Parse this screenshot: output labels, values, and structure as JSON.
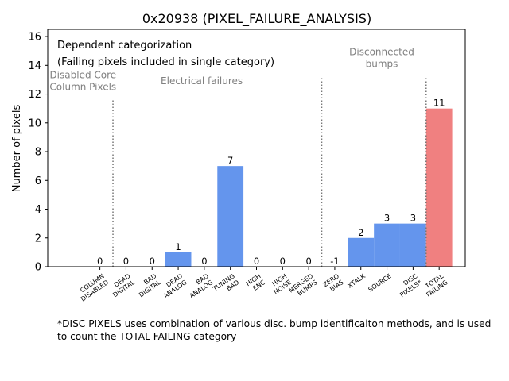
{
  "chart_data": {
    "type": "bar",
    "title": "0x20938 (PIXEL_FAILURE_ANALYSIS)",
    "xlabel": "",
    "ylabel": "Number of pixels",
    "ylim": [
      0,
      16.5
    ],
    "yticks": [
      0,
      2,
      4,
      6,
      8,
      10,
      12,
      14,
      16
    ],
    "grid": false,
    "categories": [
      "COLUMN DISABLED",
      "DEAD DIGITAL",
      "BAD DIGITAL",
      "DEAD ANALOG",
      "BAD ANALOG",
      "TUNING BAD",
      "HIGH ENC",
      "HIGH NOISE",
      "MERGED BUMPS",
      "ZERO BIAS",
      "XTALK",
      "SOURCE",
      "DISC PIXELS*",
      "TOTAL FAILING"
    ],
    "values": [
      0,
      0,
      0,
      1,
      0,
      7,
      0,
      0,
      0,
      -1,
      2,
      3,
      3,
      11
    ],
    "data_labels": [
      "0",
      "0",
      "0",
      "1",
      "0",
      "7",
      "0",
      "0",
      "0",
      "-1",
      "2",
      "3",
      "3",
      "11"
    ],
    "bar_colors": [
      "#6495ED",
      "#6495ED",
      "#6495ED",
      "#6495ED",
      "#6495ED",
      "#6495ED",
      "#6495ED",
      "#6495ED",
      "#6495ED",
      "#6495ED",
      "#6495ED",
      "#6495ED",
      "#6495ED",
      "#F08080"
    ],
    "separators_after_index": [
      0,
      8,
      12
    ],
    "legend_text": [
      "Dependent categorization",
      "(Failing pixels included in single category)"
    ],
    "group_labels": [
      "Disabled Core\nColumn Pixels",
      "Electrical failures",
      "Disconnected\nbumps"
    ]
  },
  "footnote": "*DISC PIXELS uses combination of various disc. bump identificaiton methods, and is used\nto count the TOTAL FAILING category"
}
